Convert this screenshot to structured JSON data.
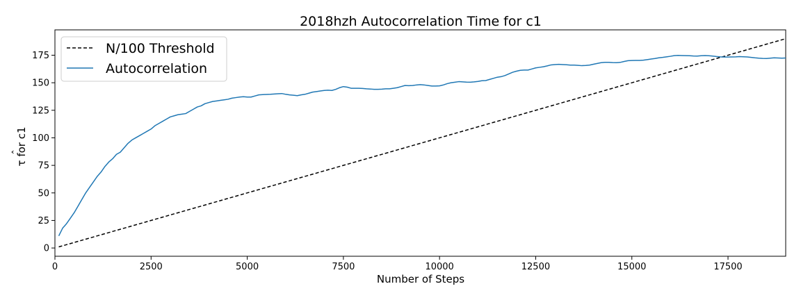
{
  "chart_data": {
    "type": "line",
    "title": "2018hzh Autocorrelation Time for c1",
    "xlabel": "Number of Steps",
    "ylabel_main": "τ",
    "ylabel_rest": " for c1",
    "xlim": [
      0,
      19000
    ],
    "ylim": [
      -7.5,
      198
    ],
    "xticks": [
      0,
      2500,
      5000,
      7500,
      10000,
      12500,
      15000,
      17500
    ],
    "yticks": [
      0,
      25,
      50,
      75,
      100,
      125,
      150,
      175
    ],
    "grid": false,
    "legend_position": "top-left",
    "series": [
      {
        "name": "N/100 Threshold",
        "style": "dashed",
        "color": "#000000",
        "x": [
          100,
          19000
        ],
        "y": [
          1,
          190
        ]
      },
      {
        "name": "Autocorrelation",
        "style": "solid",
        "color": "#1f77b4",
        "x": [
          100,
          200,
          300,
          400,
          500,
          600,
          700,
          800,
          900,
          1000,
          1100,
          1200,
          1300,
          1400,
          1500,
          1600,
          1700,
          1800,
          1900,
          2000,
          2100,
          2200,
          2300,
          2400,
          2500,
          2600,
          2700,
          2800,
          2900,
          3000,
          3100,
          3200,
          3300,
          3400,
          3500,
          3600,
          3700,
          3800,
          3900,
          4000,
          4100,
          4200,
          4300,
          4400,
          4500,
          4600,
          4700,
          4800,
          4900,
          5000,
          5100,
          5200,
          5300,
          5400,
          5500,
          5600,
          5700,
          5800,
          5900,
          6000,
          6100,
          6200,
          6300,
          6400,
          6500,
          6600,
          6700,
          6800,
          6900,
          7000,
          7100,
          7200,
          7300,
          7400,
          7500,
          7600,
          7700,
          7800,
          7900,
          8000,
          8100,
          8200,
          8300,
          8400,
          8500,
          8600,
          8700,
          8800,
          8900,
          9000,
          9100,
          9200,
          9300,
          9400,
          9500,
          9600,
          9700,
          9800,
          9900,
          10000,
          10100,
          10200,
          10300,
          10400,
          10500,
          10600,
          10700,
          10800,
          10900,
          11000,
          11100,
          11200,
          11300,
          11400,
          11500,
          11600,
          11700,
          11800,
          11900,
          12000,
          12100,
          12200,
          12300,
          12400,
          12500,
          12600,
          12700,
          12800,
          12900,
          13000,
          13100,
          13200,
          13300,
          13400,
          13500,
          13600,
          13700,
          13800,
          13900,
          14000,
          14100,
          14200,
          14300,
          14400,
          14500,
          14600,
          14700,
          14800,
          14900,
          15000,
          15100,
          15200,
          15300,
          15400,
          15500,
          15600,
          15700,
          15800,
          15900,
          16000,
          16100,
          16200,
          16300,
          16400,
          16500,
          16600,
          16700,
          16800,
          16900,
          17000,
          17100,
          17200,
          17300,
          17400,
          17500,
          17600,
          17700,
          17800,
          17900,
          18000,
          18100,
          18200,
          18300,
          18400,
          18500,
          18600,
          18700,
          18800,
          18900,
          19000
        ],
        "y": [
          11,
          18,
          22,
          27,
          32,
          38,
          44,
          50,
          55,
          60,
          65,
          69,
          74,
          78,
          81,
          85,
          87,
          91,
          95,
          98,
          100,
          102,
          104,
          106,
          108,
          111,
          113,
          115,
          117,
          119,
          120,
          121,
          121.5,
          122,
          124,
          126,
          128,
          129,
          131,
          132,
          133,
          133.5,
          134,
          134.5,
          135,
          136,
          136.5,
          137,
          137.3,
          137,
          137,
          138,
          139,
          139.2,
          139.4,
          139.5,
          139.8,
          140,
          140.2,
          139.5,
          139,
          138.7,
          138.3,
          139,
          139.5,
          140.5,
          141.5,
          142,
          142.5,
          143,
          143.2,
          143,
          144,
          145.5,
          146.5,
          146,
          145,
          145,
          145,
          144.8,
          144.5,
          144.3,
          144,
          144,
          144.2,
          144.5,
          144.5,
          145,
          145.5,
          146.5,
          147.5,
          147.3,
          147.5,
          148,
          148.3,
          148,
          147.5,
          147,
          147,
          147.2,
          148,
          149.2,
          150,
          150.5,
          151,
          150.8,
          150.6,
          150.5,
          150.8,
          151.2,
          151.8,
          152,
          153,
          154,
          155,
          155.5,
          156.5,
          158,
          159.5,
          160.5,
          161.3,
          161.5,
          161.5,
          162.5,
          163.5,
          164,
          164.5,
          165.3,
          166.2,
          166.5,
          166.7,
          166.5,
          166.3,
          166,
          166,
          165.8,
          165.5,
          165.7,
          166,
          166.8,
          167.5,
          168.2,
          168.5,
          168.5,
          168.3,
          168.2,
          168.5,
          169.3,
          170,
          170.2,
          170.3,
          170.3,
          170.5,
          171,
          171.5,
          172,
          172.6,
          173,
          173.5,
          174,
          174.6,
          174.8,
          174.7,
          174.6,
          174.5,
          174.3,
          174.2,
          174.5,
          174.7,
          174.5,
          174.2,
          173.8,
          173.5,
          173.3,
          173.3,
          173.4,
          173.5,
          173.7,
          173.6,
          173.4,
          173,
          172.6,
          172.3,
          172.1,
          172,
          172.3,
          172.6,
          172.5,
          172.3,
          172.5
        ]
      }
    ]
  }
}
